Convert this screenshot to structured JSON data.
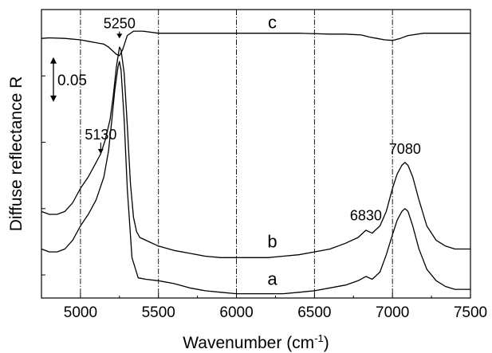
{
  "chart_data": {
    "type": "line",
    "title": "",
    "xlabel": "Wavenumber (cm",
    "xlabel_sup": "-1",
    "xlabel_end": ")",
    "ylabel": "Diffuse reflectance R",
    "xlim": [
      4750,
      7500
    ],
    "ylim": [
      0,
      1
    ],
    "x_ticks": [
      5000,
      5500,
      6000,
      6500,
      7000,
      7500
    ],
    "x_tick_labels": [
      "5000",
      "5500",
      "6000",
      "6500",
      "7000",
      "7500"
    ],
    "y_tick_values": [
      0.08,
      0.31,
      0.54,
      0.77
    ],
    "vertical_reference_lines": [
      5000,
      5500,
      6000,
      6500,
      7000
    ],
    "scale_bar": {
      "label": "0.05",
      "from": 0.68,
      "to": 0.835
    },
    "grid": false,
    "legend": "none",
    "line_color": "#000000",
    "series": [
      {
        "name": "a",
        "x": [
          4750,
          4800,
          4850,
          4900,
          4950,
          5000,
          5050,
          5100,
          5150,
          5180,
          5200,
          5220,
          5240,
          5250,
          5260,
          5280,
          5300,
          5330,
          5370,
          5420,
          5500,
          5600,
          5700,
          5800,
          5900,
          6000,
          6100,
          6200,
          6300,
          6400,
          6500,
          6600,
          6700,
          6780,
          6830,
          6870,
          6920,
          6960,
          7000,
          7030,
          7060,
          7080,
          7100,
          7130,
          7170,
          7220,
          7280,
          7340,
          7400,
          7450,
          7500
        ],
        "y": [
          0.17,
          0.16,
          0.16,
          0.17,
          0.2,
          0.25,
          0.29,
          0.34,
          0.42,
          0.51,
          0.61,
          0.72,
          0.8,
          0.82,
          0.79,
          0.62,
          0.38,
          0.14,
          0.07,
          0.065,
          0.06,
          0.05,
          0.035,
          0.025,
          0.02,
          0.015,
          0.015,
          0.015,
          0.015,
          0.02,
          0.025,
          0.035,
          0.045,
          0.06,
          0.075,
          0.065,
          0.09,
          0.15,
          0.22,
          0.27,
          0.3,
          0.31,
          0.3,
          0.25,
          0.17,
          0.1,
          0.06,
          0.04,
          0.03,
          0.03,
          0.03
        ]
      },
      {
        "name": "b",
        "x": [
          4750,
          4800,
          4850,
          4900,
          4950,
          5000,
          5050,
          5100,
          5130,
          5160,
          5190,
          5210,
          5230,
          5250,
          5260,
          5280,
          5300,
          5320,
          5340,
          5360,
          5380,
          5420,
          5500,
          5600,
          5700,
          5800,
          5900,
          6000,
          6100,
          6200,
          6300,
          6400,
          6500,
          6600,
          6700,
          6780,
          6830,
          6870,
          6920,
          6960,
          7000,
          7030,
          7060,
          7080,
          7100,
          7130,
          7170,
          7220,
          7280,
          7340,
          7400,
          7450,
          7500
        ],
        "y": [
          0.3,
          0.29,
          0.29,
          0.3,
          0.33,
          0.38,
          0.42,
          0.47,
          0.5,
          0.55,
          0.62,
          0.7,
          0.8,
          0.87,
          0.86,
          0.78,
          0.6,
          0.4,
          0.28,
          0.23,
          0.21,
          0.2,
          0.18,
          0.165,
          0.155,
          0.145,
          0.14,
          0.14,
          0.14,
          0.14,
          0.145,
          0.15,
          0.16,
          0.17,
          0.19,
          0.21,
          0.235,
          0.225,
          0.25,
          0.3,
          0.38,
          0.43,
          0.46,
          0.47,
          0.46,
          0.42,
          0.34,
          0.25,
          0.2,
          0.18,
          0.17,
          0.17,
          0.17
        ]
      },
      {
        "name": "c",
        "x": [
          4750,
          4800,
          4900,
          5000,
          5050,
          5100,
          5150,
          5180,
          5210,
          5230,
          5250,
          5270,
          5300,
          5340,
          5400,
          5500,
          5600,
          5800,
          6000,
          6200,
          6400,
          6600,
          6700,
          6800,
          6850,
          6900,
          6950,
          7000,
          7050,
          7100,
          7200,
          7300,
          7400,
          7500
        ],
        "y": [
          0.9,
          0.902,
          0.9,
          0.895,
          0.89,
          0.885,
          0.88,
          0.87,
          0.855,
          0.845,
          0.84,
          0.86,
          0.91,
          0.925,
          0.925,
          0.918,
          0.918,
          0.918,
          0.918,
          0.918,
          0.918,
          0.915,
          0.915,
          0.912,
          0.905,
          0.9,
          0.895,
          0.893,
          0.9,
          0.91,
          0.918,
          0.918,
          0.918,
          0.918
        ]
      }
    ],
    "annotations": [
      {
        "text": "5250",
        "x": 5250,
        "y": 0.935,
        "arrow_to_y": 0.9,
        "pos": "above"
      },
      {
        "text": "5130",
        "x": 5130,
        "y": 0.55,
        "arrow_to_y": 0.5,
        "pos": "above"
      },
      {
        "text": "6830",
        "x": 6830,
        "y": 0.27,
        "pos": "above"
      },
      {
        "text": "7080",
        "x": 7080,
        "y": 0.5,
        "pos": "above"
      }
    ],
    "curve_labels": [
      {
        "text": "c",
        "x": 6230,
        "y": 0.935
      },
      {
        "text": "b",
        "x": 6230,
        "y": 0.175
      },
      {
        "text": "a",
        "x": 6230,
        "y": 0.045
      }
    ]
  }
}
